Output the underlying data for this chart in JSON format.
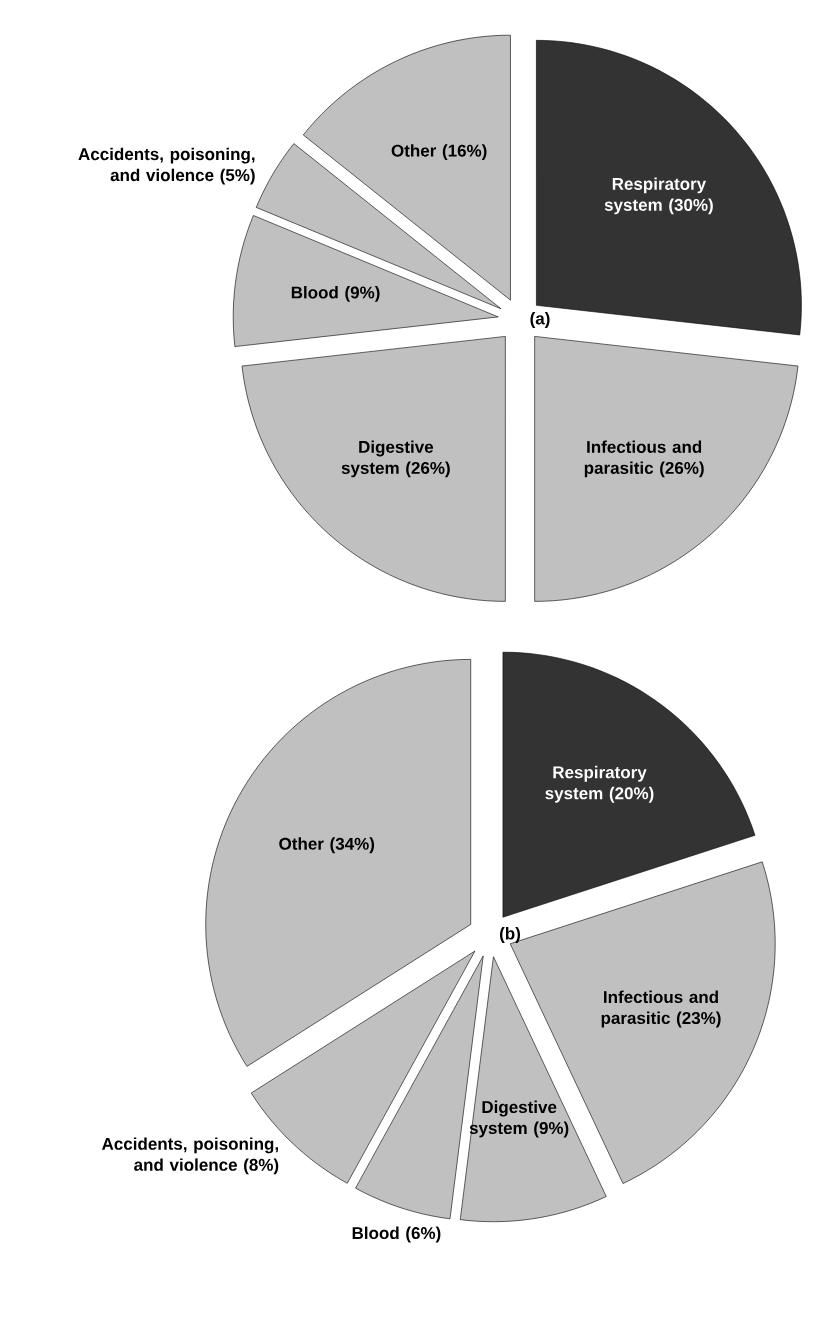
{
  "chart_data": [
    {
      "type": "pie",
      "title": "(a)",
      "categories": [
        "Respiratory system (30%)",
        "Infectious and parasitic (26%)",
        "Digestive system (26%)",
        "Blood (9%)",
        "Accidents, poisoning, and violence (5%)",
        "Other (16%)"
      ],
      "values": [
        30,
        26,
        26,
        9,
        5,
        16
      ],
      "colors": [
        "#333333",
        "#c0c0c0",
        "#c0c0c0",
        "#c0c0c0",
        "#c0c0c0",
        "#c0c0c0"
      ]
    },
    {
      "type": "pie",
      "title": "(b)",
      "categories": [
        "Respiratory system (20%)",
        "Infectious and parasitic (23%)",
        "Digestive system (9%)",
        "Blood (6%)",
        "Accidents, poisoning, and violence (8%)",
        "Other (34%)"
      ],
      "values": [
        20,
        23,
        9,
        6,
        8,
        34
      ],
      "colors": [
        "#333333",
        "#c0c0c0",
        "#c0c0c0",
        "#c0c0c0",
        "#c0c0c0",
        "#c0c0c0"
      ]
    }
  ]
}
